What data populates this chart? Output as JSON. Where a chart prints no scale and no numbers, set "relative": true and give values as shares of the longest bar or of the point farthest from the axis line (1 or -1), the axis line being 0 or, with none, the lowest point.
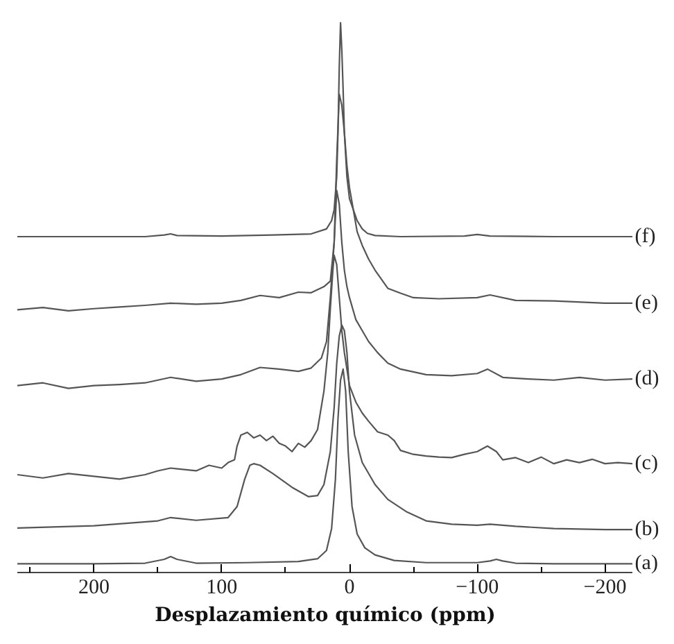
{
  "chart_data": {
    "type": "line",
    "relative": true,
    "xlabel": "Desplazamiento químico (ppm)",
    "xlim": [
      260,
      -222
    ],
    "xticks": [
      {
        "value": 250,
        "label": null
      },
      200,
      {
        "value": 150,
        "label": null
      },
      100,
      {
        "value": 50,
        "label": null
      },
      0,
      {
        "value": -50,
        "label": null
      },
      -100,
      {
        "value": -150,
        "label": null
      },
      -200
    ],
    "tick_labels": "x",
    "grid": false,
    "legend": false,
    "marker": "none",
    "line_style": "solid",
    "series": [
      {
        "name": "(a)",
        "color": "#555555",
        "x": [
          260,
          200,
          160,
          145,
          140,
          135,
          120,
          80,
          40,
          25,
          18,
          14,
          11,
          9,
          7,
          5,
          3,
          1,
          -2,
          -6,
          -12,
          -20,
          -35,
          -60,
          -100,
          -110,
          -115,
          -120,
          -130,
          -160,
          -222
        ],
        "values": [
          0.016,
          0.016,
          0.017,
          0.024,
          0.029,
          0.024,
          0.017,
          0.018,
          0.02,
          0.025,
          0.04,
          0.08,
          0.17,
          0.28,
          0.35,
          0.37,
          0.33,
          0.22,
          0.12,
          0.07,
          0.045,
          0.032,
          0.022,
          0.018,
          0.018,
          0.021,
          0.024,
          0.021,
          0.017,
          0.016,
          0.016
        ]
      },
      {
        "name": "(b)",
        "color": "#555555",
        "x": [
          260,
          200,
          150,
          140,
          120,
          95,
          88,
          82,
          78,
          75,
          70,
          60,
          45,
          32,
          25,
          20,
          15,
          12,
          10,
          8,
          6,
          4,
          2,
          0,
          -4,
          -10,
          -20,
          -30,
          -45,
          -60,
          -80,
          -100,
          -110,
          -130,
          -160,
          -200,
          -222
        ],
        "values": [
          0.081,
          0.085,
          0.094,
          0.1,
          0.095,
          0.1,
          0.12,
          0.17,
          0.195,
          0.198,
          0.195,
          0.18,
          0.155,
          0.138,
          0.14,
          0.16,
          0.22,
          0.3,
          0.38,
          0.43,
          0.45,
          0.44,
          0.4,
          0.33,
          0.25,
          0.2,
          0.16,
          0.133,
          0.11,
          0.094,
          0.088,
          0.086,
          0.088,
          0.084,
          0.08,
          0.078,
          0.078
        ]
      },
      {
        "name": "(c)",
        "color": "#555555",
        "x": [
          260,
          240,
          220,
          200,
          180,
          160,
          150,
          140,
          120,
          110,
          100,
          95,
          90,
          88,
          85,
          80,
          75,
          70,
          65,
          60,
          55,
          50,
          45,
          40,
          35,
          30,
          25,
          20,
          17,
          15,
          13,
          12,
          10,
          8,
          6,
          4,
          2,
          0,
          -5,
          -10,
          -15,
          -22,
          -30,
          -35,
          -40,
          -50,
          -60,
          -70,
          -80,
          -90,
          -100,
          -108,
          -115,
          -120,
          -130,
          -140,
          -150,
          -160,
          -170,
          -180,
          -190,
          -200,
          -210,
          -222
        ],
        "values": [
          0.178,
          0.172,
          0.18,
          0.175,
          0.17,
          0.178,
          0.185,
          0.19,
          0.185,
          0.195,
          0.19,
          0.2,
          0.205,
          0.23,
          0.25,
          0.255,
          0.245,
          0.25,
          0.24,
          0.248,
          0.235,
          0.23,
          0.22,
          0.235,
          0.228,
          0.24,
          0.26,
          0.33,
          0.4,
          0.48,
          0.55,
          0.577,
          0.56,
          0.5,
          0.44,
          0.4,
          0.37,
          0.34,
          0.31,
          0.29,
          0.275,
          0.256,
          0.25,
          0.24,
          0.222,
          0.215,
          0.212,
          0.21,
          0.209,
          0.215,
          0.22,
          0.23,
          0.22,
          0.205,
          0.209,
          0.2,
          0.21,
          0.198,
          0.205,
          0.2,
          0.206,
          0.198,
          0.2,
          0.198
        ]
      },
      {
        "name": "(d)",
        "color": "#555555",
        "x": [
          260,
          240,
          220,
          200,
          180,
          160,
          140,
          120,
          100,
          85,
          70,
          55,
          40,
          30,
          22,
          18,
          15,
          12,
          10,
          8,
          6,
          4,
          2,
          0,
          -5,
          -10,
          -15,
          -22,
          -30,
          -40,
          -50,
          -60,
          -80,
          -100,
          -108,
          -120,
          -140,
          -160,
          -180,
          -200,
          -222
        ],
        "values": [
          0.34,
          0.345,
          0.335,
          0.34,
          0.342,
          0.345,
          0.355,
          0.348,
          0.352,
          0.36,
          0.373,
          0.37,
          0.366,
          0.372,
          0.39,
          0.42,
          0.5,
          0.6,
          0.695,
          0.67,
          0.6,
          0.55,
          0.52,
          0.5,
          0.46,
          0.44,
          0.42,
          0.4,
          0.381,
          0.37,
          0.365,
          0.36,
          0.358,
          0.362,
          0.37,
          0.355,
          0.352,
          0.35,
          0.355,
          0.35,
          0.352
        ]
      },
      {
        "name": "(e)",
        "color": "#555555",
        "x": [
          260,
          240,
          220,
          200,
          180,
          160,
          140,
          120,
          100,
          85,
          70,
          55,
          40,
          30,
          20,
          15,
          12,
          10,
          8,
          6,
          4,
          2,
          0,
          -3,
          -6,
          -10,
          -15,
          -20,
          -30,
          -40,
          -50,
          -70,
          -100,
          -110,
          -130,
          -160,
          -200,
          -222
        ],
        "values": [
          0.478,
          0.482,
          0.476,
          0.48,
          0.483,
          0.486,
          0.49,
          0.488,
          0.49,
          0.495,
          0.504,
          0.5,
          0.51,
          0.509,
          0.52,
          0.53,
          0.6,
          0.75,
          0.87,
          0.85,
          0.8,
          0.74,
          0.7,
          0.66,
          0.62,
          0.595,
          0.57,
          0.55,
          0.517,
          0.508,
          0.5,
          0.498,
          0.5,
          0.505,
          0.495,
          0.494,
          0.49,
          0.49
        ]
      },
      {
        "name": "(f)",
        "color": "#555555",
        "x": [
          260,
          200,
          160,
          145,
          140,
          135,
          100,
          60,
          30,
          18,
          14,
          12,
          10,
          9,
          8,
          7,
          6,
          5,
          4,
          2,
          0,
          -3,
          -6,
          -10,
          -14,
          -20,
          -40,
          -90,
          -100,
          -110,
          -160,
          -222
        ],
        "values": [
          0.611,
          0.611,
          0.611,
          0.614,
          0.616,
          0.613,
          0.612,
          0.614,
          0.616,
          0.625,
          0.64,
          0.66,
          0.72,
          0.8,
          0.92,
          1,
          0.95,
          0.88,
          0.8,
          0.72,
          0.68,
          0.66,
          0.64,
          0.625,
          0.617,
          0.613,
          0.611,
          0.612,
          0.615,
          0.612,
          0.611,
          0.611
        ]
      }
    ]
  }
}
